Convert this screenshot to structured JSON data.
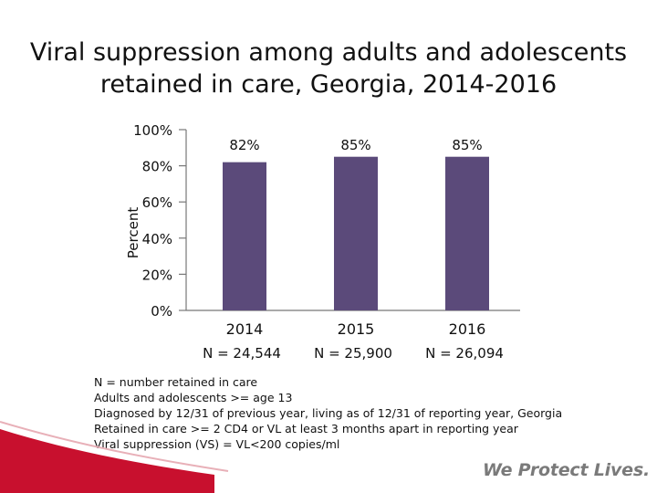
{
  "title": {
    "line1": "Viral suppression among adults and adolescents",
    "line2": "retained in care, Georgia, 2014-2016"
  },
  "chart_data": {
    "type": "bar",
    "title": "Viral suppression among adults and adolescents retained in care, Georgia, 2014-2016",
    "categories": [
      "2014",
      "2015",
      "2016"
    ],
    "values": [
      82,
      85,
      85
    ],
    "value_labels": [
      "82%",
      "85%",
      "85%"
    ],
    "category_sublabels": [
      "N = 24,544",
      "N = 25,900",
      "N = 26,094"
    ],
    "ylabel": "Percent",
    "xlabel": "",
    "ylim": [
      0,
      100
    ],
    "yticks": [
      0,
      20,
      40,
      60,
      80,
      100
    ],
    "ytick_labels": [
      "0%",
      "20%",
      "40%",
      "60%",
      "80%",
      "100%"
    ],
    "bar_color": "#5b4a7a",
    "grid": false
  },
  "notes": [
    "N = number retained in care",
    "Adults and adolescents >= age 13",
    "Diagnosed by 12/31 of previous year, living as of 12/31 of reporting year, Georgia",
    "Retained in care >= 2 CD4 or VL at least 3 months apart in reporting year",
    "Viral suppression (VS) = VL<200 copies/ml"
  ],
  "tagline": "We Protect Lives.",
  "colors": {
    "brand_red": "#c8102e",
    "bar": "#5b4a7a",
    "tagline_gray": "#7a7a7a"
  }
}
